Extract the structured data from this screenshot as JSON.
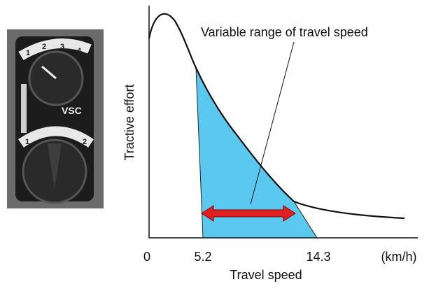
{
  "annotation": "Variable range of travel speed",
  "y_axis_label": "Tractive effort",
  "x_axis_label": "Travel speed",
  "x_unit": "(km/h)",
  "x_tick_labels": [
    "0",
    "5.2",
    "14.3"
  ],
  "dial": {
    "upper_labels": [
      "1",
      "2",
      "3",
      "4"
    ],
    "name": "VSC",
    "lower_labels": [
      "1",
      "2"
    ]
  }
}
